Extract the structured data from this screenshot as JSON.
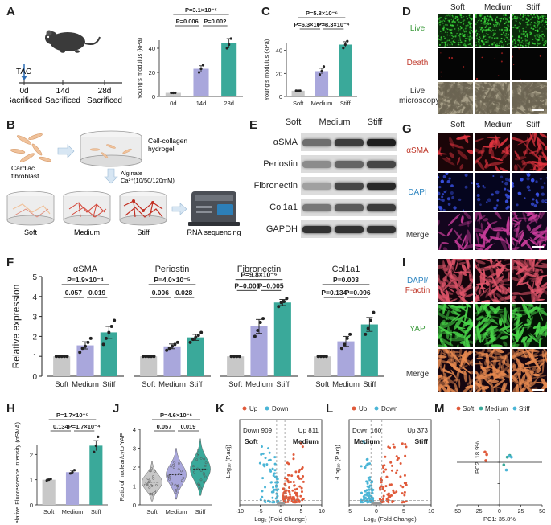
{
  "panels": {
    "A": "A",
    "B": "B",
    "C": "C",
    "D": "D",
    "E": "E",
    "F": "F",
    "G": "G",
    "H": "H",
    "I": "I",
    "J": "J",
    "K": "K",
    "L": "L",
    "M": "M"
  },
  "timeline": {
    "tac": "TAC",
    "points": [
      "0d",
      "14d",
      "28d"
    ],
    "sacrificed": "Sacrificed"
  },
  "schematic": {
    "cardiac": "Cardiac",
    "fibroblast": "fibroblast",
    "hydrogel_1": "Cell-collagen",
    "hydrogel_2": "hydrogel",
    "alginate": "Alginate",
    "ca": "Ca²⁺(10/50/120mM)",
    "soft": "Soft",
    "medium": "Medium",
    "stiff": "Stiff",
    "rnaseq": "RNA sequencing"
  },
  "microscopy_D": {
    "cols": [
      "Soft",
      "Medium",
      "Stiff"
    ],
    "rows": [
      "Live",
      "Death",
      "Live microscopy"
    ],
    "row_colors": [
      "#3a9a3a",
      "#c0392b",
      "#333333"
    ]
  },
  "western_E": {
    "cols": [
      "Soft",
      "Medium",
      "Stiff"
    ],
    "rows": [
      "αSMA",
      "Periostin",
      "Fibronectin",
      "Col1a1",
      "GAPDH"
    ]
  },
  "microscopy_G": {
    "cols": [
      "Soft",
      "Medium",
      "Stiff"
    ],
    "rows": [
      "αSMA",
      "DAPI",
      "Merge"
    ],
    "row_colors": [
      "#c0392b",
      "#2e86c1",
      "#333333"
    ]
  },
  "microscopy_I": {
    "rows": [
      "DAPI/",
      "F-actin",
      "YAP",
      "Merge"
    ],
    "row_colors": [
      "#2e86c1",
      "#c0392b",
      "#3a9a3a",
      "#333333"
    ]
  },
  "chart_data": [
    {
      "id": "A",
      "type": "bar",
      "categories": [
        "0d",
        "14d",
        "28d"
      ],
      "values": [
        3,
        23,
        44
      ],
      "errors": [
        0.5,
        2.5,
        4
      ],
      "points": [
        [
          3,
          3,
          3
        ],
        [
          20,
          23,
          26
        ],
        [
          40,
          43,
          48
        ]
      ],
      "ylabel": "Young's modulus (kPa)",
      "ylim": [
        0,
        60
      ],
      "yticks": [
        0,
        20,
        40,
        60
      ],
      "colors": [
        "#c8c8c8",
        "#a9a7dc",
        "#3aa99a"
      ],
      "pvalues": [
        {
          "label": "P=3.1×10⁻⁵",
          "from": 0,
          "to": 2
        },
        {
          "label": "P=0.006",
          "from": 0,
          "to": 1
        },
        {
          "label": "P=0.002",
          "from": 1,
          "to": 2
        }
      ]
    },
    {
      "id": "C",
      "type": "bar",
      "categories": [
        "Soft",
        "Medium",
        "Stiff"
      ],
      "values": [
        5,
        22,
        45
      ],
      "errors": [
        0.5,
        2.5,
        2.5
      ],
      "points": [
        [
          5,
          5,
          5
        ],
        [
          19,
          22,
          26
        ],
        [
          42,
          45,
          48
        ]
      ],
      "ylabel": "Young's modulus (kPa)",
      "ylim": [
        0,
        60
      ],
      "yticks": [
        0,
        20,
        40,
        60
      ],
      "colors": [
        "#c8c8c8",
        "#a9a7dc",
        "#3aa99a"
      ],
      "pvalues": [
        {
          "label": "P=5.8×10⁻⁶",
          "from": 0,
          "to": 2
        },
        {
          "label": "P=6.3×10⁻⁵",
          "from": 0,
          "to": 1
        },
        {
          "label": "P=8.3×10⁻⁴",
          "from": 1,
          "to": 2
        }
      ]
    },
    {
      "id": "F",
      "type": "bar",
      "ylabel": "Relative expression",
      "ylim": [
        0,
        5
      ],
      "yticks": [
        0,
        1,
        2,
        3,
        4,
        5
      ],
      "colors": [
        "#c8c8c8",
        "#a9a7dc",
        "#3aa99a"
      ],
      "groups": [
        {
          "name": "αSMA",
          "categories": [
            "Soft",
            "Medium",
            "Stiff"
          ],
          "values": [
            1,
            1.55,
            2.2
          ],
          "errors": [
            0,
            0.18,
            0.3
          ],
          "points": [
            [
              1,
              1,
              1,
              1,
              1
            ],
            [
              1.2,
              1.4,
              1.5,
              1.7,
              1.9
            ],
            [
              1.6,
              1.9,
              2.2,
              2.5,
              2.8
            ]
          ],
          "pvalues": [
            {
              "label": "P=1.9×10⁻⁴",
              "from": 0,
              "to": 2
            },
            {
              "label": "0.057",
              "from": 0,
              "to": 1
            },
            {
              "label": "0.019",
              "from": 1,
              "to": 2
            }
          ]
        },
        {
          "name": "Periostin",
          "categories": [
            "Soft",
            "Medium",
            "Stiff"
          ],
          "values": [
            1,
            1.5,
            1.95
          ],
          "errors": [
            0,
            0.12,
            0.15
          ],
          "points": [
            [
              1,
              1,
              1,
              1,
              1
            ],
            [
              1.3,
              1.4,
              1.5,
              1.6,
              1.7
            ],
            [
              1.7,
              1.85,
              1.95,
              2.05,
              2.2
            ]
          ],
          "pvalues": [
            {
              "label": "P=4.0×10⁻⁵",
              "from": 0,
              "to": 2
            },
            {
              "label": "0.006",
              "from": 0,
              "to": 1
            },
            {
              "label": "0.028",
              "from": 1,
              "to": 2
            }
          ]
        },
        {
          "name": "Fibronectin",
          "categories": [
            "Soft",
            "Medium",
            "Stiff"
          ],
          "values": [
            1,
            2.5,
            3.7
          ],
          "errors": [
            0,
            0.35,
            0.15
          ],
          "points": [
            [
              1,
              1,
              1,
              1
            ],
            [
              2.0,
              2.3,
              2.7,
              2.9
            ],
            [
              3.5,
              3.7,
              3.75,
              3.9
            ]
          ],
          "pvalues": [
            {
              "label": "P=9.8×10⁻⁶",
              "from": 0,
              "to": 2
            },
            {
              "label": "P=0.001",
              "from": 0,
              "to": 1
            },
            {
              "label": "P=0.005",
              "from": 1,
              "to": 2
            }
          ]
        },
        {
          "name": "Col1a1",
          "categories": [
            "Soft",
            "Medium",
            "Stiff"
          ],
          "values": [
            1,
            1.75,
            2.6
          ],
          "errors": [
            0,
            0.25,
            0.35
          ],
          "points": [
            [
              1,
              1,
              1,
              1
            ],
            [
              1.4,
              1.6,
              1.9,
              2.1
            ],
            [
              2.1,
              2.4,
              2.8,
              3.2
            ]
          ],
          "pvalues": [
            {
              "label": "P=0.003",
              "from": 0,
              "to": 2
            },
            {
              "label": "P=0.134",
              "from": 0,
              "to": 1
            },
            {
              "label": "P=0.096",
              "from": 1,
              "to": 2
            }
          ]
        }
      ]
    },
    {
      "id": "H",
      "type": "bar",
      "categories": [
        "Soft",
        "Medium",
        "Stiff"
      ],
      "values": [
        1,
        1.3,
        2.35
      ],
      "errors": [
        0.03,
        0.07,
        0.2
      ],
      "points": [
        [
          0.97,
          1.0,
          1.03
        ],
        [
          1.25,
          1.3,
          1.38
        ],
        [
          2.1,
          2.35,
          2.7
        ]
      ],
      "ylabel": "Relative Fluorescence Intensity (αSMA)",
      "ylim": [
        0,
        3
      ],
      "yticks": [
        0,
        1,
        2,
        3
      ],
      "colors": [
        "#c8c8c8",
        "#a9a7dc",
        "#3aa99a"
      ],
      "pvalues": [
        {
          "label": "P=1.7×10⁻⁵",
          "from": 0,
          "to": 2
        },
        {
          "label": "0.134",
          "from": 0,
          "to": 1
        },
        {
          "label": "P=1.7×10⁻⁴",
          "from": 1,
          "to": 2
        }
      ]
    },
    {
      "id": "J",
      "type": "violin",
      "categories": [
        "Soft",
        "Medium",
        "Stiff"
      ],
      "medians": [
        1.2,
        1.6,
        1.9
      ],
      "ranges": [
        [
          0.2,
          2.3
        ],
        [
          0.3,
          3.0
        ],
        [
          0.5,
          3.5
        ]
      ],
      "ylabel": "Ratio of nuclear/cyto YAP",
      "ylim": [
        0,
        4
      ],
      "yticks": [
        0,
        1,
        2,
        3,
        4
      ],
      "colors": [
        "#c8c8c8",
        "#a9a7dc",
        "#3aa99a"
      ],
      "pvalues": [
        {
          "label": "P=4.6×10⁻⁶",
          "from": 0,
          "to": 2
        },
        {
          "label": "0.057",
          "from": 0,
          "to": 1
        },
        {
          "label": "0.019",
          "from": 1,
          "to": 2
        }
      ]
    },
    {
      "id": "K",
      "type": "scatter",
      "legend": [
        "Up",
        "Down"
      ],
      "colors": [
        "#e05a3a",
        "#4ab5d6"
      ],
      "down_label": "Down 909",
      "up_label": "Up 811",
      "left_group": "Soft",
      "right_group": "Medium",
      "xlabel": "Log₂ (Fold Change)",
      "ylabel": "-Log₁₀ (P.adj)",
      "xlim": [
        -10,
        10
      ],
      "xticks": [
        -10,
        -5,
        0,
        5,
        10
      ],
      "ylim": [
        0,
        100
      ],
      "yticks": [
        0,
        20,
        40,
        60,
        80,
        100
      ]
    },
    {
      "id": "L",
      "type": "scatter",
      "legend": [
        "Up",
        "Down"
      ],
      "colors": [
        "#e05a3a",
        "#4ab5d6"
      ],
      "down_label": "Down 160",
      "up_label": "Up 373",
      "left_group": "Medium",
      "right_group": "Stiff",
      "xlabel": "Log₂ (Fold Change)",
      "ylabel": "-Log₁₀ (P.adj)",
      "xlim": [
        -5,
        10
      ],
      "xticks": [
        -5,
        0,
        5,
        10
      ],
      "ylim": [
        0,
        30
      ],
      "yticks": [
        0,
        10,
        20,
        30
      ]
    },
    {
      "id": "M",
      "type": "scatter",
      "legend": [
        "Soft",
        "Medium",
        "Stiff"
      ],
      "colors": [
        "#e05a3a",
        "#3aa99a",
        "#4ab5d6"
      ],
      "xlabel": "PC1: 35.8%",
      "ylabel": "PC2: 18.9%",
      "xlim": [
        -50,
        50
      ],
      "xticks": [
        -50,
        -25,
        0,
        25,
        50
      ],
      "ylim": [
        -50,
        50
      ],
      "yticks": [
        -50,
        -25,
        0,
        25,
        50
      ],
      "series": [
        {
          "name": "Soft",
          "points": [
            [
              -17,
              12
            ],
            [
              -15,
              9
            ],
            [
              -16,
              2
            ]
          ]
        },
        {
          "name": "Medium",
          "points": [
            [
              5,
              -3
            ],
            [
              9,
              6
            ],
            [
              12,
              8
            ]
          ]
        },
        {
          "name": "Stiff",
          "points": [
            [
              8,
              -9
            ],
            [
              11,
              7
            ],
            [
              14,
              6
            ]
          ]
        }
      ]
    }
  ]
}
